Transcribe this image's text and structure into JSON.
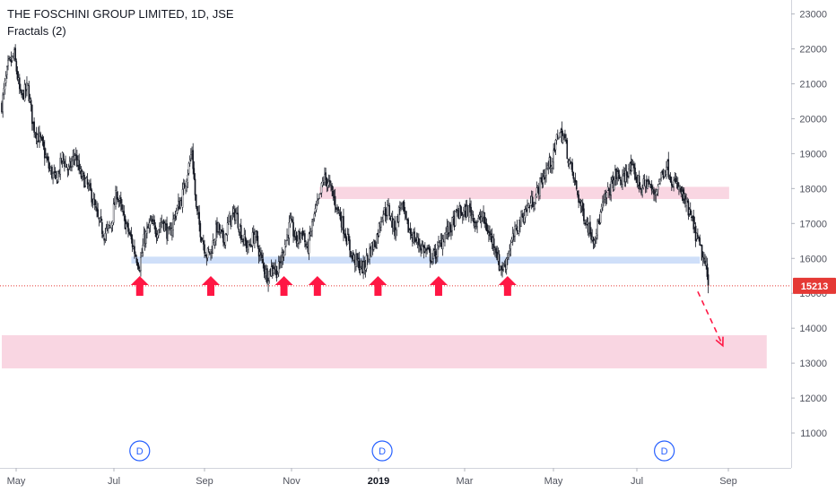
{
  "header": {
    "title": "THE FOSCHINI GROUP LIMITED, 1D, JSE",
    "indicator": "Fractals (2)"
  },
  "colors": {
    "up": "#ffffff",
    "down": "#131722",
    "wick": "#131722",
    "support_zone": "#c7d9f8",
    "resistance_zone": "#f8cfdd",
    "target_zone": "#f8cfdd",
    "arrow": "#ff1744",
    "price_line": "#e53935",
    "price_tag": "#e53935",
    "dividend_marker": "#2962ff"
  },
  "chart_data": {
    "type": "candlestick",
    "title": "THE FOSCHINI GROUP LIMITED, 1D, JSE",
    "x_labels": [
      "May",
      "Jul",
      "Sep",
      "Nov",
      "2019",
      "Mar",
      "May",
      "Jul",
      "Sep"
    ],
    "y_ticks": [
      11000,
      12000,
      13000,
      14000,
      15000,
      16000,
      17000,
      18000,
      19000,
      20000,
      21000,
      22000,
      23000
    ],
    "ylim": [
      10000,
      23400
    ],
    "last_price": 15213,
    "last_price_label": "15213",
    "path_points": [
      [
        0,
        20400
      ],
      [
        6,
        21500
      ],
      [
        12,
        21800
      ],
      [
        18,
        20600
      ],
      [
        25,
        20900
      ],
      [
        30,
        19800
      ],
      [
        38,
        19300
      ],
      [
        45,
        18600
      ],
      [
        52,
        18200
      ],
      [
        58,
        18900
      ],
      [
        64,
        18500
      ],
      [
        70,
        19000
      ],
      [
        75,
        18400
      ],
      [
        80,
        18200
      ],
      [
        86,
        17800
      ],
      [
        92,
        17100
      ],
      [
        98,
        16700
      ],
      [
        104,
        16900
      ],
      [
        110,
        17900
      ],
      [
        116,
        17200
      ],
      [
        122,
        16700
      ],
      [
        128,
        16100
      ],
      [
        132,
        15800
      ],
      [
        136,
        16500
      ],
      [
        142,
        17000
      ],
      [
        148,
        16800
      ],
      [
        154,
        17100
      ],
      [
        160,
        16600
      ],
      [
        166,
        17300
      ],
      [
        172,
        17700
      ],
      [
        178,
        18500
      ],
      [
        182,
        19100
      ],
      [
        186,
        17400
      ],
      [
        190,
        16800
      ],
      [
        196,
        16100
      ],
      [
        200,
        16200
      ],
      [
        206,
        16900
      ],
      [
        212,
        16500
      ],
      [
        218,
        17100
      ],
      [
        224,
        17300
      ],
      [
        230,
        16600
      ],
      [
        236,
        16300
      ],
      [
        242,
        16700
      ],
      [
        248,
        16000
      ],
      [
        254,
        15500
      ],
      [
        260,
        15800
      ],
      [
        264,
        15600
      ],
      [
        270,
        16300
      ],
      [
        276,
        17000
      ],
      [
        282,
        16500
      ],
      [
        288,
        16800
      ],
      [
        292,
        16200
      ],
      [
        298,
        17100
      ],
      [
        304,
        17700
      ],
      [
        308,
        18300
      ],
      [
        312,
        18200
      ],
      [
        318,
        17700
      ],
      [
        324,
        17200
      ],
      [
        330,
        16600
      ],
      [
        336,
        16000
      ],
      [
        340,
        15900
      ],
      [
        346,
        15700
      ],
      [
        352,
        16200
      ],
      [
        358,
        16500
      ],
      [
        364,
        17300
      ],
      [
        370,
        17400
      ],
      [
        376,
        16800
      ],
      [
        382,
        17600
      ],
      [
        388,
        16900
      ],
      [
        394,
        16600
      ],
      [
        400,
        16400
      ],
      [
        406,
        16200
      ],
      [
        412,
        16000
      ],
      [
        418,
        16300
      ],
      [
        424,
        16700
      ],
      [
        430,
        16900
      ],
      [
        436,
        17300
      ],
      [
        442,
        17300
      ],
      [
        448,
        17400
      ],
      [
        454,
        17000
      ],
      [
        460,
        17200
      ],
      [
        466,
        16700
      ],
      [
        472,
        16400
      ],
      [
        476,
        15800
      ],
      [
        480,
        15700
      ],
      [
        486,
        16300
      ],
      [
        492,
        16800
      ],
      [
        498,
        17200
      ],
      [
        504,
        17500
      ],
      [
        510,
        17700
      ],
      [
        516,
        18200
      ],
      [
        522,
        18600
      ],
      [
        528,
        18900
      ],
      [
        532,
        19600
      ],
      [
        538,
        19500
      ],
      [
        542,
        18900
      ],
      [
        548,
        18200
      ],
      [
        554,
        17500
      ],
      [
        560,
        17000
      ],
      [
        566,
        16600
      ],
      [
        570,
        16900
      ],
      [
        576,
        17600
      ],
      [
        582,
        18000
      ],
      [
        588,
        18400
      ],
      [
        594,
        18200
      ],
      [
        600,
        18600
      ],
      [
        606,
        18400
      ],
      [
        612,
        18000
      ],
      [
        618,
        18200
      ],
      [
        624,
        17800
      ],
      [
        630,
        18300
      ],
      [
        636,
        18700
      ],
      [
        642,
        18200
      ],
      [
        648,
        18000
      ],
      [
        654,
        17600
      ],
      [
        660,
        17100
      ],
      [
        666,
        16500
      ],
      [
        670,
        16100
      ],
      [
        674,
        15700
      ],
      [
        676,
        15213
      ]
    ],
    "support_zone": {
      "label": "",
      "from": 15850,
      "to": 16050,
      "x_start_bar": 124,
      "x_end_bar": 668
    },
    "resistance_zone": {
      "label": "",
      "from": 17700,
      "to": 18050,
      "x_start_bar": 304,
      "x_end_bar": 696
    },
    "target_zone": {
      "label": "",
      "from": 12850,
      "to": 13800,
      "x_start_bar": 0,
      "x_end_bar": 732
    },
    "fractal_arrow_bars": [
      132,
      200,
      270,
      302,
      360,
      418,
      484
    ],
    "dividend_bars": [
      132,
      364,
      634
    ],
    "dividend_label": "D",
    "projection": {
      "from_bar": 666,
      "from_price": 15050,
      "to_bar": 690,
      "to_price": 13500
    },
    "n_bars": 738
  }
}
